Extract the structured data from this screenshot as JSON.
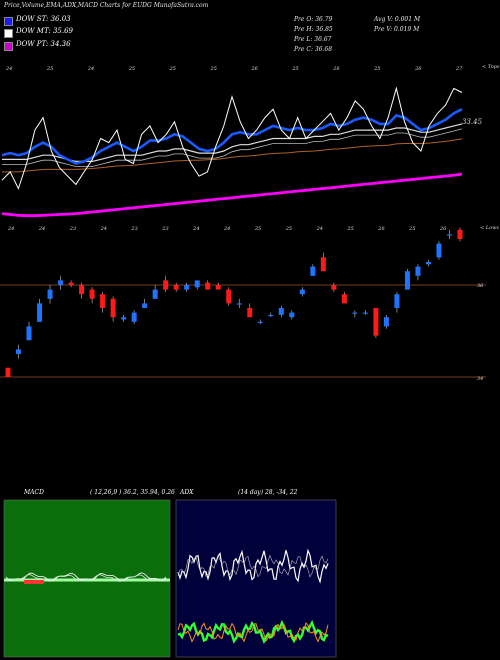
{
  "header": {
    "title": "Price,Volume,EMA,ADX,MACD Charts for EUDG MunafaSutra.com",
    "prev_open": "Pre   O: 36.79",
    "prev_high": "Pre   H: 36.85",
    "prev_low": "Pre   L: 36.67",
    "prev_close": "Pre   C: 36.68",
    "avg_volume": "Avg V: 0.001 M",
    "prev_volume": "Pre   V: 0.019 M"
  },
  "legend": [
    {
      "label": "DOW ST: 36.03",
      "color": "#1a1aff"
    },
    {
      "label": "DOW MT: 35.69",
      "color": "#ffffff"
    },
    {
      "label": "DOW PT: 34.36",
      "color": "#cc00cc"
    }
  ],
  "colors": {
    "up": "#1e74ff",
    "down": "#ff1a1a",
    "price_line": "#ffffff",
    "ema_fast": "#1a5aff",
    "ema_long": "#ff00ff",
    "ema_slow": "#b06020",
    "macd_bg": "#0a6e0a",
    "adx_bg": "#00003a"
  },
  "chart_data": [
    {
      "type": "line",
      "name": "ema_panel",
      "corner_label": "< Tops",
      "last_label": "33.45",
      "top_axis_ticks": [
        "24",
        "25",
        "24",
        "25",
        "25",
        "25",
        "26",
        "25",
        "26",
        "25",
        "26",
        "27"
      ],
      "bottom_axis_ticks": [
        "24",
        "24",
        "23",
        "24",
        "23",
        "23",
        "24",
        "24",
        "25",
        "25",
        "24",
        "25",
        "26",
        "25",
        "26"
      ],
      "series": [
        {
          "role": "price",
          "values": [
            31.4,
            31.6,
            31.2,
            31.8,
            32.6,
            32.9,
            32.1,
            31.7,
            31.5,
            31.3,
            31.6,
            31.9,
            32.4,
            32.3,
            32.6,
            31.9,
            31.8,
            32.5,
            32.7,
            32.3,
            32.5,
            32.8,
            32.2,
            31.8,
            31.5,
            31.6,
            32.2,
            32.7,
            33.4,
            32.8,
            32.4,
            32.6,
            32.9,
            33.1,
            32.6,
            32.4,
            32.9,
            32.4,
            32.6,
            32.8,
            33.0,
            32.6,
            32.9,
            33.3,
            33.1,
            32.7,
            32.4,
            32.9,
            33.6,
            32.8,
            32.3,
            32.1,
            32.7,
            33.0,
            33.2,
            33.6,
            33.5
          ]
        },
        {
          "role": "ema_fast",
          "values": [
            32.0,
            32.05,
            32.0,
            32.05,
            32.2,
            32.3,
            32.2,
            32.0,
            31.9,
            31.8,
            31.85,
            31.95,
            32.1,
            32.2,
            32.3,
            32.2,
            32.1,
            32.2,
            32.35,
            32.35,
            32.4,
            32.5,
            32.45,
            32.3,
            32.15,
            32.1,
            32.15,
            32.3,
            32.5,
            32.55,
            32.5,
            32.5,
            32.6,
            32.7,
            32.65,
            32.6,
            32.65,
            32.6,
            32.6,
            32.65,
            32.75,
            32.7,
            32.75,
            32.85,
            32.9,
            32.85,
            32.75,
            32.75,
            32.95,
            32.9,
            32.75,
            32.6,
            32.65,
            32.75,
            32.85,
            33.0,
            33.1
          ]
        },
        {
          "role": "ema_mid",
          "values": [
            31.9,
            31.9,
            31.9,
            31.9,
            31.95,
            32.0,
            32.0,
            31.95,
            31.9,
            31.85,
            31.85,
            31.85,
            31.9,
            31.95,
            32.0,
            32.0,
            32.0,
            32.0,
            32.05,
            32.1,
            32.1,
            32.15,
            32.15,
            32.1,
            32.05,
            32.05,
            32.05,
            32.1,
            32.2,
            32.25,
            32.25,
            32.3,
            32.35,
            32.4,
            32.4,
            32.4,
            32.4,
            32.4,
            32.45,
            32.45,
            32.5,
            32.5,
            32.55,
            32.6,
            32.6,
            32.6,
            32.6,
            32.6,
            32.65,
            32.65,
            32.6,
            32.55,
            32.55,
            32.6,
            32.65,
            32.7,
            32.75
          ]
        },
        {
          "role": "ema_slow",
          "values": [
            31.6,
            31.6,
            31.6,
            31.62,
            31.64,
            31.66,
            31.66,
            31.66,
            31.66,
            31.66,
            31.67,
            31.68,
            31.7,
            31.72,
            31.74,
            31.75,
            31.76,
            31.78,
            31.8,
            31.82,
            31.84,
            31.86,
            31.87,
            31.88,
            31.88,
            31.89,
            31.9,
            31.92,
            31.95,
            31.97,
            31.98,
            32.0,
            32.02,
            32.04,
            32.05,
            32.06,
            32.08,
            32.09,
            32.1,
            32.12,
            32.14,
            32.15,
            32.17,
            32.19,
            32.21,
            32.22,
            32.23,
            32.24,
            32.27,
            32.28,
            32.28,
            32.28,
            32.29,
            32.31,
            32.33,
            32.36,
            32.39
          ]
        },
        {
          "role": "ema_long",
          "values": [
            30.6,
            30.58,
            30.56,
            30.55,
            30.55,
            30.56,
            30.57,
            30.58,
            30.59,
            30.6,
            30.62,
            30.64,
            30.66,
            30.68,
            30.7,
            30.72,
            30.74,
            30.76,
            30.78,
            30.8,
            30.82,
            30.84,
            30.86,
            30.88,
            30.9,
            30.92,
            30.94,
            30.96,
            30.98,
            31.0,
            31.02,
            31.04,
            31.06,
            31.08,
            31.1,
            31.12,
            31.14,
            31.16,
            31.18,
            31.2,
            31.22,
            31.24,
            31.26,
            31.28,
            31.3,
            31.32,
            31.34,
            31.36,
            31.38,
            31.4,
            31.42,
            31.44,
            31.46,
            31.48,
            31.5,
            31.52,
            31.55
          ]
        }
      ]
    },
    {
      "type": "candlestick",
      "name": "price_panel",
      "corner_label": "< Lows",
      "gridlines": [
        "36",
        "34"
      ],
      "candles": [
        {
          "o": 34.2,
          "c": 34.0,
          "h": 34.2,
          "l": 34.0
        },
        {
          "o": 34.5,
          "c": 34.6,
          "h": 34.7,
          "l": 34.4
        },
        {
          "o": 34.8,
          "c": 35.1,
          "h": 35.2,
          "l": 34.8
        },
        {
          "o": 35.2,
          "c": 35.6,
          "h": 35.7,
          "l": 35.2
        },
        {
          "o": 35.7,
          "c": 35.9,
          "h": 36.0,
          "l": 35.6
        },
        {
          "o": 36.0,
          "c": 36.1,
          "h": 36.2,
          "l": 35.9
        },
        {
          "o": 36.05,
          "c": 36.0,
          "h": 36.1,
          "l": 35.95
        },
        {
          "o": 36.0,
          "c": 35.8,
          "h": 36.05,
          "l": 35.7
        },
        {
          "o": 35.9,
          "c": 35.7,
          "h": 35.95,
          "l": 35.6
        },
        {
          "o": 35.8,
          "c": 35.5,
          "h": 35.85,
          "l": 35.4
        },
        {
          "o": 35.7,
          "c": 35.3,
          "h": 35.75,
          "l": 35.2
        },
        {
          "o": 35.25,
          "c": 35.3,
          "h": 35.35,
          "l": 35.2
        },
        {
          "o": 35.2,
          "c": 35.4,
          "h": 35.45,
          "l": 35.15
        },
        {
          "o": 35.5,
          "c": 35.6,
          "h": 35.7,
          "l": 35.5
        },
        {
          "o": 35.7,
          "c": 35.9,
          "h": 36.0,
          "l": 35.7
        },
        {
          "o": 36.1,
          "c": 35.9,
          "h": 36.2,
          "l": 35.85
        },
        {
          "o": 36.0,
          "c": 35.9,
          "h": 36.05,
          "l": 35.85
        },
        {
          "o": 35.9,
          "c": 36.0,
          "h": 36.05,
          "l": 35.85
        },
        {
          "o": 35.95,
          "c": 36.1,
          "h": 36.1,
          "l": 35.9
        },
        {
          "o": 36.05,
          "c": 35.9,
          "h": 36.1,
          "l": 35.9
        },
        {
          "o": 36.0,
          "c": 35.9,
          "h": 36.05,
          "l": 35.9
        },
        {
          "o": 35.9,
          "c": 35.6,
          "h": 35.95,
          "l": 35.55
        },
        {
          "o": 35.6,
          "c": 35.6,
          "h": 35.7,
          "l": 35.5
        },
        {
          "o": 35.5,
          "c": 35.3,
          "h": 35.6,
          "l": 35.3
        },
        {
          "o": 35.2,
          "c": 35.2,
          "h": 35.25,
          "l": 35.15
        },
        {
          "o": 35.35,
          "c": 35.35,
          "h": 35.4,
          "l": 35.3
        },
        {
          "o": 35.35,
          "c": 35.5,
          "h": 35.55,
          "l": 35.3
        },
        {
          "o": 35.3,
          "c": 35.4,
          "h": 35.45,
          "l": 35.25
        },
        {
          "o": 35.8,
          "c": 35.9,
          "h": 35.95,
          "l": 35.75
        },
        {
          "o": 36.2,
          "c": 36.4,
          "h": 36.45,
          "l": 36.2
        },
        {
          "o": 36.6,
          "c": 36.3,
          "h": 36.7,
          "l": 36.3
        },
        {
          "o": 36.0,
          "c": 35.9,
          "h": 36.05,
          "l": 35.85
        },
        {
          "o": 35.8,
          "c": 35.6,
          "h": 35.85,
          "l": 35.6
        },
        {
          "o": 35.4,
          "c": 35.4,
          "h": 35.45,
          "l": 35.3
        },
        {
          "o": 35.4,
          "c": 35.4,
          "h": 35.45,
          "l": 35.35
        },
        {
          "o": 35.5,
          "c": 34.9,
          "h": 35.5,
          "l": 34.85
        },
        {
          "o": 35.1,
          "c": 35.3,
          "h": 35.35,
          "l": 35.05
        },
        {
          "o": 35.5,
          "c": 35.8,
          "h": 35.85,
          "l": 35.4
        },
        {
          "o": 35.9,
          "c": 36.3,
          "h": 36.35,
          "l": 35.9
        },
        {
          "o": 36.2,
          "c": 36.4,
          "h": 36.45,
          "l": 36.1
        },
        {
          "o": 36.45,
          "c": 36.5,
          "h": 36.55,
          "l": 36.4
        },
        {
          "o": 36.6,
          "c": 36.9,
          "h": 36.95,
          "l": 36.55
        },
        {
          "o": 37.1,
          "c": 37.1,
          "h": 37.2,
          "l": 37.0
        },
        {
          "o": 37.2,
          "c": 37.0,
          "h": 37.25,
          "l": 36.95
        }
      ]
    },
    {
      "type": "line",
      "name": "macd_panel",
      "title": "MACD",
      "params": "( 12,26,9 ) 36.2, 35.94, 0.26"
    },
    {
      "type": "line",
      "name": "adx_panel",
      "title": "ADX",
      "params": "(14 day) 28, -34, 22"
    }
  ]
}
